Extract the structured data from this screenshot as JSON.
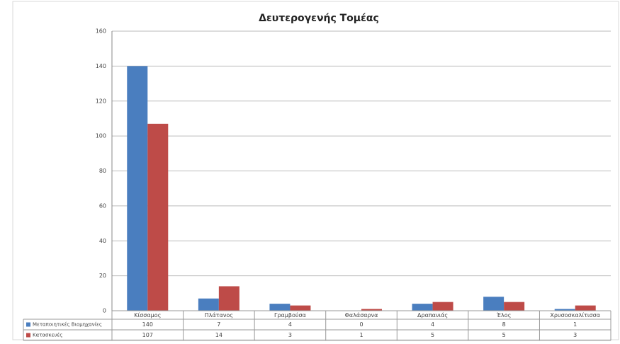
{
  "chart_data": {
    "type": "bar",
    "title": "Δευτερογενής Τομέας",
    "categories": [
      "Κίσσαμος",
      "Πλάτανος",
      "Γραμβούσα",
      "Φαλάσαρνα",
      "Δραπανιάς",
      "Έλος",
      "Χρυσοσκαλίτισσα"
    ],
    "series": [
      {
        "name": "Μεταποιητικές Βιομηχανίες",
        "color": "#4a7ebf",
        "values": [
          140,
          7,
          4,
          0,
          4,
          8,
          1
        ]
      },
      {
        "name": "Κατασκευές",
        "color": "#be4b48",
        "values": [
          107,
          14,
          3,
          1,
          5,
          5,
          3
        ]
      }
    ],
    "ylim": [
      0,
      160
    ],
    "yticks": [
      0,
      20,
      40,
      60,
      80,
      100,
      120,
      140,
      160
    ],
    "grid": true
  }
}
